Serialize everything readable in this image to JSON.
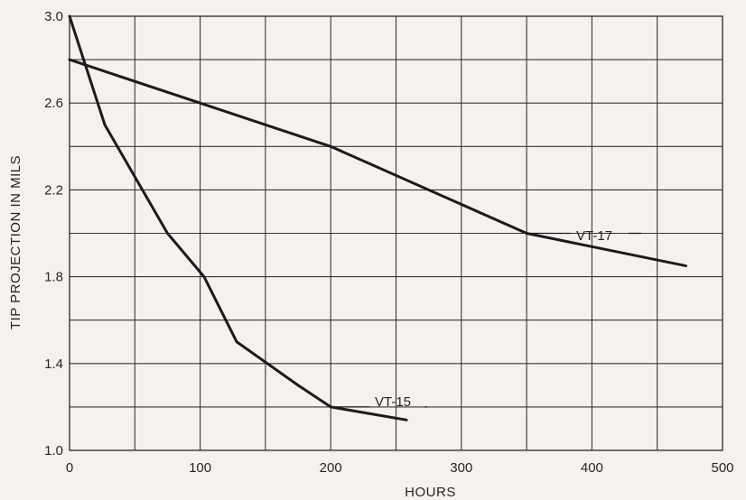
{
  "chart_data": {
    "type": "line",
    "title": "",
    "xlabel": "HOURS",
    "ylabel": "TIP PROJECTION IN MILS",
    "xlim": [
      0,
      500
    ],
    "ylim": [
      1.0,
      3.0
    ],
    "x_ticks": [
      "0",
      "100",
      "200",
      "300",
      "400",
      "500"
    ],
    "y_ticks": [
      "1.0",
      "1.4",
      "1.8",
      "2.2",
      "2.6",
      "3.0"
    ],
    "grid": true,
    "x_grid_step": 50,
    "y_grid_step": 0.2,
    "series": [
      {
        "name": "VT-15",
        "x": [
          0,
          27,
          75,
          103,
          128,
          175,
          200,
          258
        ],
        "y": [
          3.0,
          2.5,
          2.0,
          1.8,
          1.5,
          1.3,
          1.2,
          1.14
        ]
      },
      {
        "name": "VT-17",
        "x": [
          0,
          100,
          200,
          350,
          472
        ],
        "y": [
          2.8,
          2.6,
          2.4,
          2.0,
          1.85
        ]
      }
    ],
    "series_color": "#1e1a1c",
    "background_color": "#f6f1ee"
  }
}
